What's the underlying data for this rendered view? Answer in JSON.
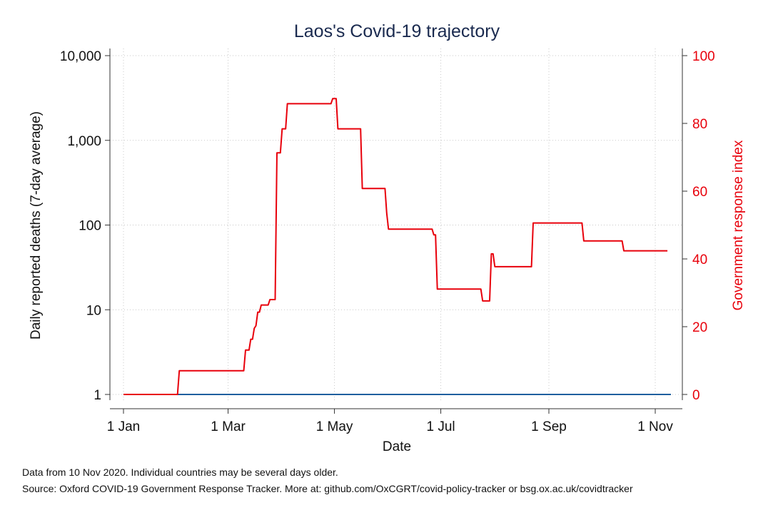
{
  "chart_data": {
    "type": "line",
    "title": "Laos's Covid-19 trajectory",
    "xlabel": "Date",
    "ylabel_left": "Daily reported deaths (7-day average)",
    "ylabel_right": "Government response index",
    "x_ticks": [
      {
        "label": "1 Jan",
        "day": 0
      },
      {
        "label": "1 Mar",
        "day": 60
      },
      {
        "label": "1 May",
        "day": 121
      },
      {
        "label": "1 Jul",
        "day": 182
      },
      {
        "label": "1 Sep",
        "day": 244
      },
      {
        "label": "1 Nov",
        "day": 305
      }
    ],
    "x_range_days": [
      0,
      314
    ],
    "y_left": {
      "scale": "log",
      "range": [
        1,
        10000
      ],
      "ticks": [
        {
          "value": 1,
          "label": "1"
        },
        {
          "value": 10,
          "label": "10"
        },
        {
          "value": 100,
          "label": "100"
        },
        {
          "value": 1000,
          "label": "1,000"
        },
        {
          "value": 10000,
          "label": "10,000"
        }
      ]
    },
    "y_right": {
      "scale": "linear",
      "range": [
        0,
        100
      ],
      "ticks": [
        {
          "value": 0,
          "label": "0"
        },
        {
          "value": 20,
          "label": "20"
        },
        {
          "value": 40,
          "label": "40"
        },
        {
          "value": 60,
          "label": "60"
        },
        {
          "value": 80,
          "label": "80"
        },
        {
          "value": 100,
          "label": "100"
        }
      ]
    },
    "grid": true,
    "series": [
      {
        "axis": "left",
        "color": "#1f5f9e",
        "points": [
          [
            0,
            1
          ],
          [
            314,
            1
          ]
        ]
      },
      {
        "axis": "right",
        "color": "#e8000b",
        "points": [
          [
            0,
            0
          ],
          [
            31,
            0
          ],
          [
            32,
            7
          ],
          [
            69,
            7
          ],
          [
            70,
            13.1
          ],
          [
            72,
            13.1
          ],
          [
            73,
            16.3
          ],
          [
            74,
            16.3
          ],
          [
            75,
            19.5
          ],
          [
            76,
            20.3
          ],
          [
            77,
            24.3
          ],
          [
            78,
            24.3
          ],
          [
            79,
            26.4
          ],
          [
            83,
            26.4
          ],
          [
            84,
            28
          ],
          [
            87,
            28
          ],
          [
            88,
            71.3
          ],
          [
            90,
            71.3
          ],
          [
            91,
            78.4
          ],
          [
            93,
            78.4
          ],
          [
            94,
            85.8
          ],
          [
            119,
            85.8
          ],
          [
            120,
            87.3
          ],
          [
            122,
            87.3
          ],
          [
            123,
            78.4
          ],
          [
            136,
            78.4
          ],
          [
            137,
            60.8
          ],
          [
            150,
            60.8
          ],
          [
            151,
            53.5
          ],
          [
            152,
            48.8
          ],
          [
            177,
            48.8
          ],
          [
            178,
            47.1
          ],
          [
            179,
            47.1
          ],
          [
            180,
            31.1
          ],
          [
            205,
            31.1
          ],
          [
            206,
            27.6
          ],
          [
            210,
            27.6
          ],
          [
            211,
            41.5
          ],
          [
            212,
            41.5
          ],
          [
            213,
            37.7
          ],
          [
            234,
            37.7
          ],
          [
            235,
            50.6
          ],
          [
            263,
            50.6
          ],
          [
            264,
            45.3
          ],
          [
            286,
            45.3
          ],
          [
            287,
            42.4
          ],
          [
            312,
            42.4
          ]
        ]
      }
    ]
  },
  "notes": {
    "line1": "Data from 10 Nov 2020. Individual countries may be several days older.",
    "line2": "Source: Oxford COVID-19 Government Response Tracker. More at: github.com/OxCGRT/covid-policy-tracker or bsg.ox.ac.uk/covidtracker"
  }
}
